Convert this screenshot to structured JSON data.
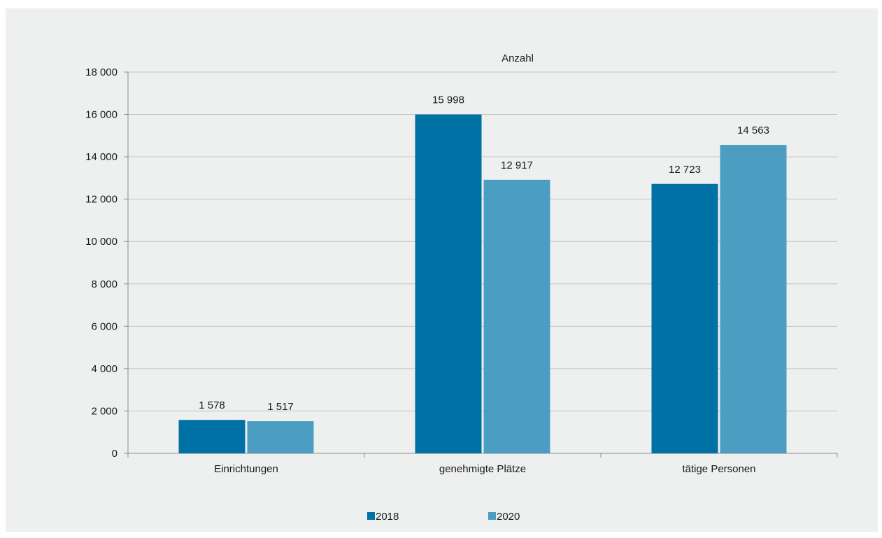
{
  "chart_data": {
    "type": "bar",
    "unit_label": "Anzahl",
    "categories": [
      "Einrichtungen",
      "genehmigte Plätze",
      "tätige Personen"
    ],
    "series": [
      {
        "name": "2018",
        "color": "#0071a4",
        "values": [
          1578,
          15998,
          12723
        ],
        "labels": [
          "1 578",
          "15 998",
          "12 723"
        ]
      },
      {
        "name": "2020",
        "color": "#4b9ec2",
        "values": [
          1517,
          12917,
          14563
        ],
        "labels": [
          "1 517",
          "12 917",
          "14 563"
        ]
      }
    ],
    "ylim": [
      0,
      18000
    ],
    "yticks": [
      0,
      2000,
      4000,
      6000,
      8000,
      10000,
      12000,
      14000,
      16000,
      18000
    ],
    "ytick_labels": [
      "0",
      "2 000",
      "4 000",
      "6 000",
      "8 000",
      "10 000",
      "12 000",
      "14 000",
      "16 000",
      "18 000"
    ],
    "grid": true,
    "legend_position": "bottom"
  }
}
